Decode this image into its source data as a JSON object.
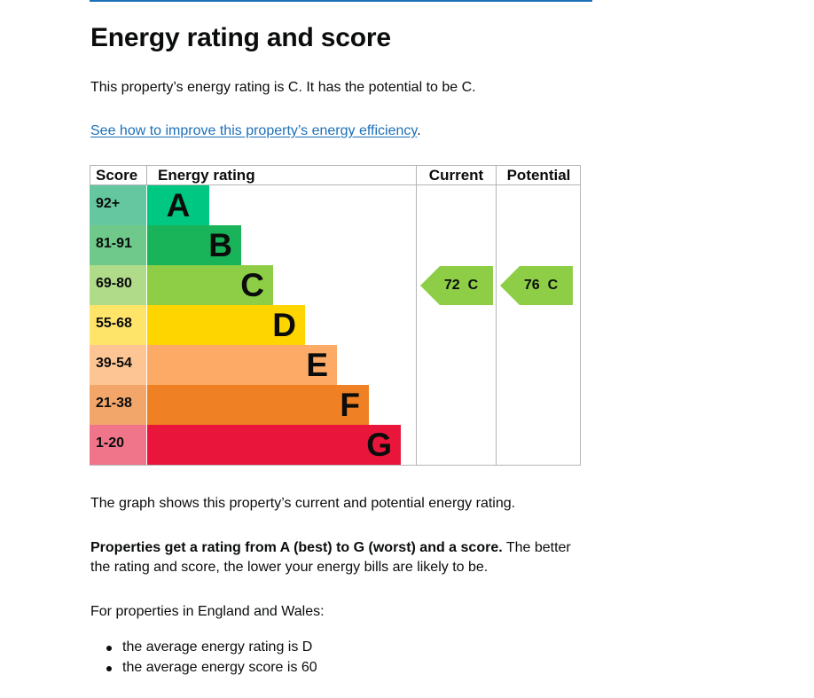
{
  "colors": {
    "link": "#1d70b8",
    "rule": "#1d70b8",
    "grid": "#b1b4b6",
    "text": "#0b0c0c"
  },
  "title": "Energy rating and score",
  "intro": "This property’s energy rating is C. It has the potential to be C.",
  "improve_link": {
    "text": "See how to improve this property’s energy efficiency",
    "suffix": "."
  },
  "chart_data": {
    "type": "table",
    "headers": {
      "score": "Score",
      "rating": "Energy rating",
      "current": "Current",
      "potential": "Potential"
    },
    "bands": [
      {
        "range": "92+",
        "letter": "A",
        "band_color": "#00c781",
        "score_color": "#64c7a0"
      },
      {
        "range": "81-91",
        "letter": "B",
        "band_color": "#19b459",
        "score_color": "#6ec98a"
      },
      {
        "range": "69-80",
        "letter": "C",
        "band_color": "#8dce46",
        "score_color": "#b0dc8a"
      },
      {
        "range": "55-68",
        "letter": "D",
        "band_color": "#ffd500",
        "score_color": "#ffe46a"
      },
      {
        "range": "39-54",
        "letter": "E",
        "band_color": "#fcaa65",
        "score_color": "#fdc594"
      },
      {
        "range": "21-38",
        "letter": "F",
        "band_color": "#ef8023",
        "score_color": "#f3a66a"
      },
      {
        "range": "1-20",
        "letter": "G",
        "band_color": "#e9153b",
        "score_color": "#f0758a"
      }
    ],
    "current": {
      "score": 72,
      "letter": "C",
      "label": "72  C",
      "color": "#8dce46"
    },
    "potential": {
      "score": 76,
      "letter": "C",
      "label": "76  C",
      "color": "#8dce46"
    }
  },
  "graph_caption": "The graph shows this property’s current and potential energy rating.",
  "rating_para": {
    "bold": "Properties get a rating from A (best) to G (worst) and a score.",
    "rest_line1": " The better",
    "line2": "the rating and score, the lower your energy bills are likely to be."
  },
  "average_intro": "For properties in England and Wales:",
  "averages": [
    "the average energy rating is D",
    "the average energy score is 60"
  ]
}
